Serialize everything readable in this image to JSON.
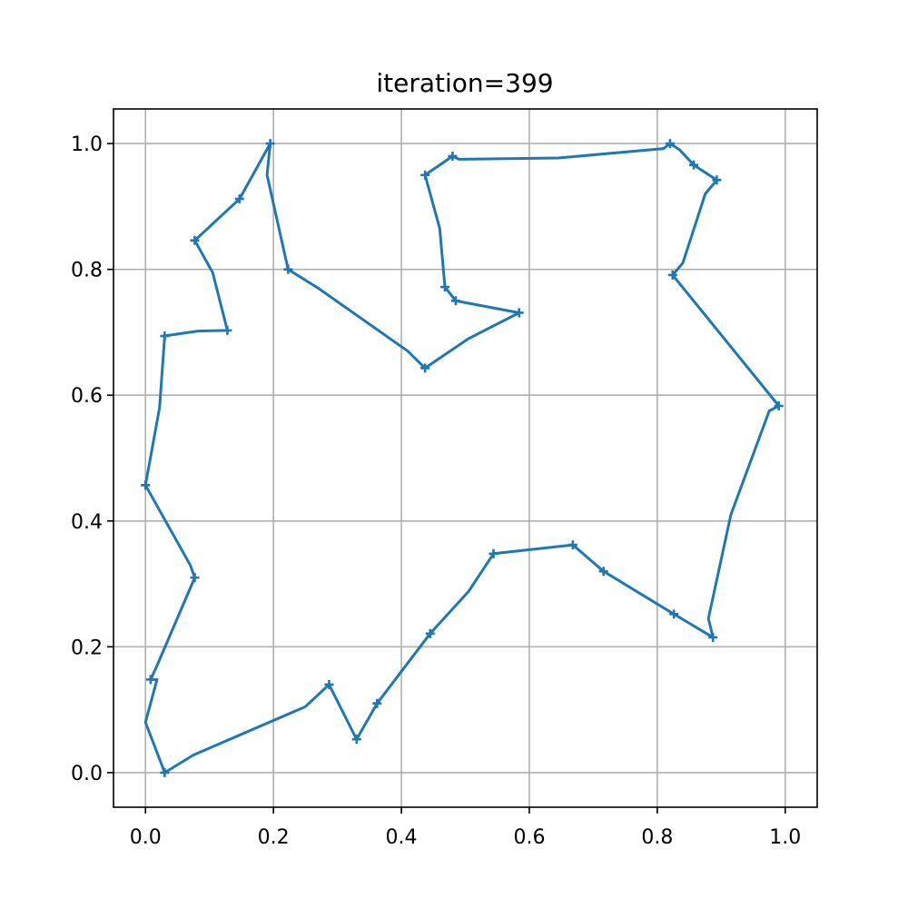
{
  "chart_data": {
    "type": "line",
    "title": "iteration=399",
    "xlabel": "",
    "ylabel": "",
    "xlim": [
      -0.05,
      1.05
    ],
    "ylim": [
      -0.055,
      1.055
    ],
    "xticks": [
      0.0,
      0.2,
      0.4,
      0.6,
      0.8,
      1.0
    ],
    "yticks": [
      0.0,
      0.2,
      0.4,
      0.6,
      0.8,
      1.0
    ],
    "xtick_labels": [
      "0.0",
      "0.2",
      "0.4",
      "0.6",
      "0.8",
      "1.0"
    ],
    "ytick_labels": [
      "0.0",
      "0.2",
      "0.4",
      "0.6",
      "0.8",
      "1.0"
    ],
    "grid": true,
    "line_color": "#1f77b4",
    "marker_color": "#1f77b4",
    "grid_color": "#b0b0b0",
    "cities": {
      "x": [
        0.03,
        0.0,
        0.008,
        0.077,
        0.0,
        0.03,
        0.128,
        0.077,
        0.147,
        0.195,
        0.223,
        0.437,
        0.584,
        0.485,
        0.468,
        0.437,
        0.48,
        0.82,
        0.857,
        0.893,
        0.824,
        0.99,
        0.887,
        0.826,
        0.716,
        0.668,
        0.544,
        0.445,
        0.362,
        0.33,
        0.287
      ],
      "y": [
        0.0,
        0.457,
        0.148,
        0.31,
        0.457,
        0.694,
        0.703,
        0.846,
        0.912,
        1.0,
        0.8,
        0.643,
        0.731,
        0.75,
        0.772,
        0.95,
        0.98,
        1.0,
        0.966,
        0.942,
        0.791,
        0.583,
        0.215,
        0.252,
        0.32,
        0.362,
        0.348,
        0.221,
        0.11,
        0.053,
        0.14
      ]
    },
    "route": {
      "x": [
        0.03,
        0.0,
        0.018,
        0.008,
        0.018,
        0.077,
        0.07,
        0.0,
        0.022,
        0.03,
        0.028,
        0.082,
        0.128,
        0.105,
        0.077,
        0.147,
        0.195,
        0.19,
        0.223,
        0.27,
        0.41,
        0.437,
        0.505,
        0.584,
        0.485,
        0.468,
        0.46,
        0.437,
        0.48,
        0.49,
        0.645,
        0.81,
        0.82,
        0.835,
        0.857,
        0.893,
        0.875,
        0.84,
        0.824,
        0.99,
        0.975,
        0.915,
        0.88,
        0.887,
        0.826,
        0.716,
        0.668,
        0.544,
        0.505,
        0.445,
        0.362,
        0.33,
        0.287,
        0.25,
        0.075,
        0.03
      ],
      "y": [
        0.0,
        0.08,
        0.148,
        0.148,
        0.17,
        0.31,
        0.33,
        0.457,
        0.58,
        0.694,
        0.694,
        0.702,
        0.703,
        0.795,
        0.846,
        0.912,
        1.0,
        0.95,
        0.8,
        0.77,
        0.67,
        0.643,
        0.69,
        0.731,
        0.75,
        0.772,
        0.865,
        0.95,
        0.98,
        0.975,
        0.977,
        0.992,
        1.0,
        0.99,
        0.966,
        0.942,
        0.92,
        0.81,
        0.791,
        0.583,
        0.575,
        0.41,
        0.245,
        0.215,
        0.252,
        0.32,
        0.362,
        0.348,
        0.288,
        0.221,
        0.11,
        0.053,
        0.14,
        0.105,
        0.028,
        0.0
      ]
    }
  }
}
